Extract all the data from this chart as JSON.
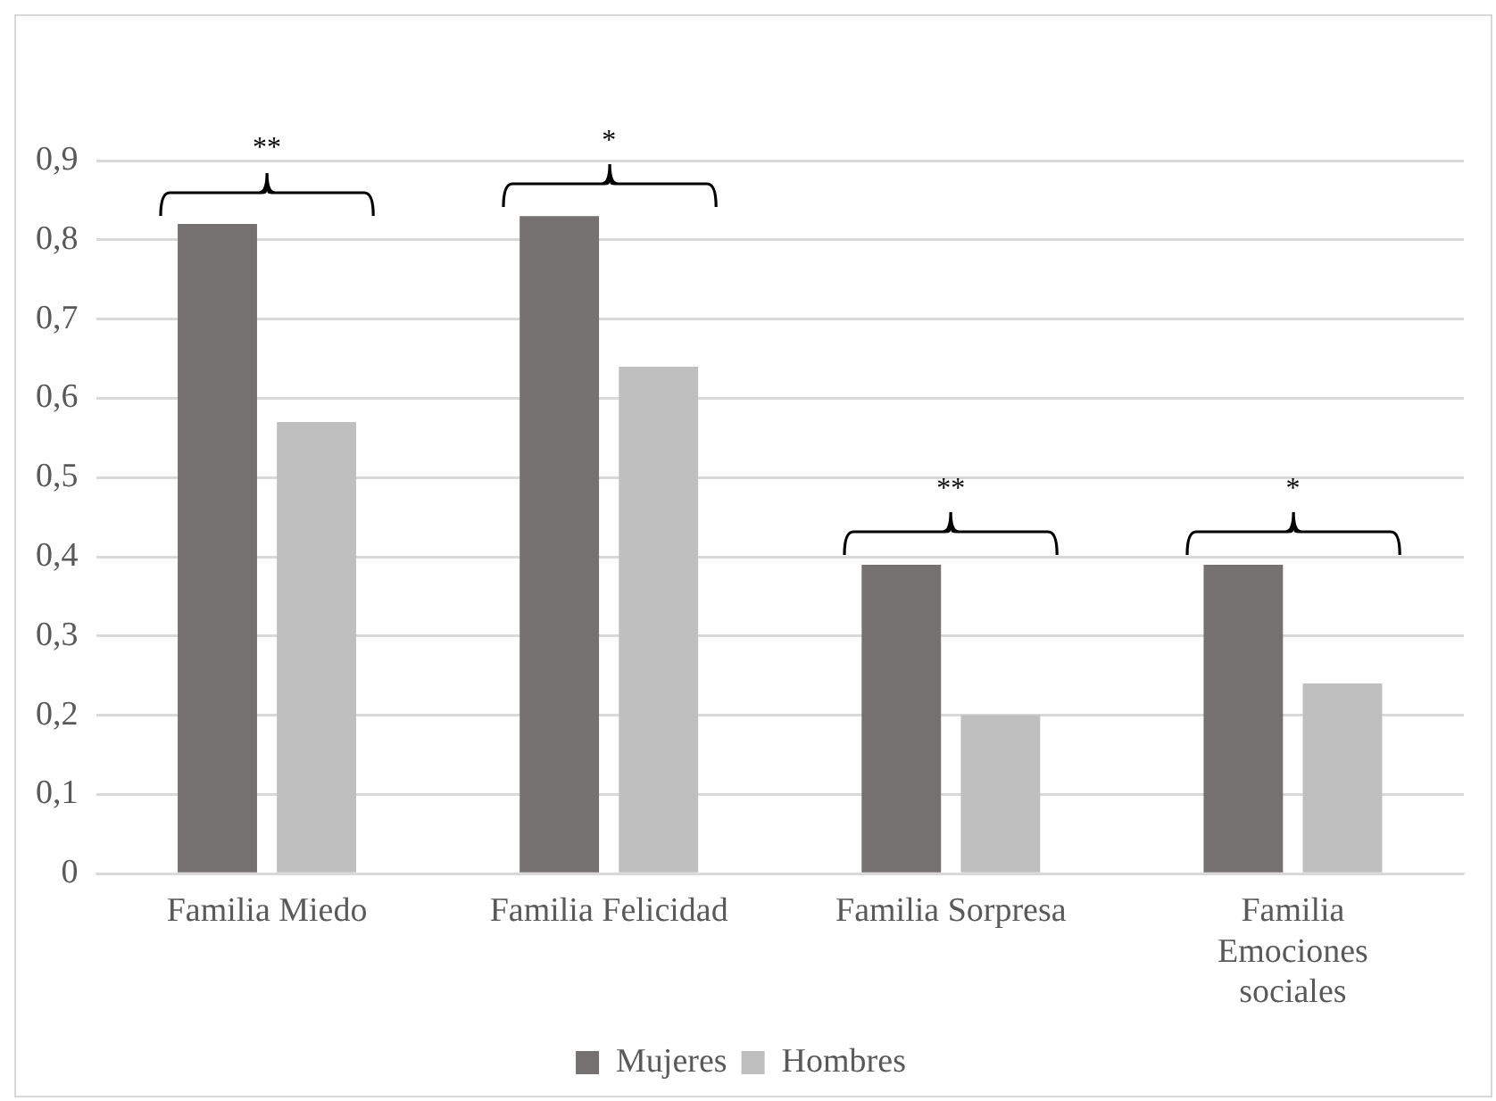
{
  "chart_data": {
    "type": "bar",
    "categories": [
      "Familia Miedo",
      "Familia Felicidad",
      "Familia Sorpresa",
      "Familia Emociones sociales"
    ],
    "series": [
      {
        "name": "Mujeres",
        "color": "#767171",
        "values": [
          0.82,
          0.83,
          0.39,
          0.39
        ]
      },
      {
        "name": "Hombres",
        "color": "#bfbfbf",
        "values": [
          0.57,
          0.64,
          0.2,
          0.24
        ]
      }
    ],
    "ylim": [
      0,
      0.9
    ],
    "yticks": [
      0,
      {
        "value": 0.1,
        "label": "0,1"
      },
      {
        "value": 0.2,
        "label": "0,2"
      },
      {
        "value": 0.3,
        "label": "0,3"
      },
      {
        "value": 0.4,
        "label": "0,4"
      },
      {
        "value": 0.5,
        "label": "0,5"
      },
      {
        "value": 0.6,
        "label": "0,6"
      },
      {
        "value": 0.7,
        "label": "0,7"
      },
      {
        "value": 0.8,
        "label": "0,8"
      },
      {
        "value": 0.9,
        "label": "0,9"
      }
    ],
    "grid": "y",
    "legend": "bottom",
    "annotations": [
      "**",
      "*",
      "**",
      "*"
    ]
  }
}
